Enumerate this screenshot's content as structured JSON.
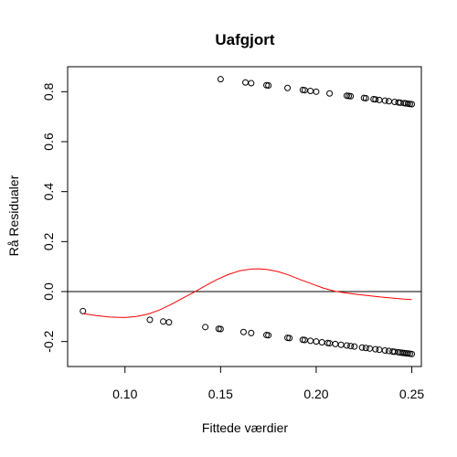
{
  "chart_data": {
    "type": "scatter",
    "title": "Uafgjort",
    "xlabel": "Fittede værdier",
    "ylabel": "Rå Residualer",
    "xlim": [
      0.07,
      0.255
    ],
    "ylim": [
      -0.3,
      0.9
    ],
    "xticks": [
      0.1,
      0.15,
      0.2,
      0.25
    ],
    "xtick_labels": [
      "0.10",
      "0.15",
      "0.20",
      "0.25"
    ],
    "yticks": [
      -0.2,
      0.0,
      0.2,
      0.4,
      0.6,
      0.8
    ],
    "ytick_labels": [
      "-0.2",
      "0.0",
      "0.2",
      "0.4",
      "0.6",
      "0.8"
    ],
    "hline": 0.0,
    "grid": false,
    "series": [
      {
        "type": "scatter",
        "color": "#000000",
        "x": [
          0.15,
          0.163,
          0.166,
          0.174,
          0.175,
          0.185,
          0.193,
          0.194,
          0.197,
          0.2,
          0.207,
          0.216,
          0.217,
          0.218,
          0.225,
          0.226,
          0.23,
          0.231,
          0.233,
          0.236,
          0.238,
          0.241,
          0.243,
          0.244,
          0.246,
          0.247,
          0.248,
          0.249,
          0.25,
          0.078,
          0.113,
          0.12,
          0.123,
          0.142,
          0.149,
          0.15,
          0.162,
          0.166,
          0.174,
          0.175,
          0.185,
          0.186,
          0.193,
          0.194,
          0.197,
          0.2,
          0.203,
          0.206,
          0.207,
          0.21,
          0.213,
          0.216,
          0.218,
          0.22,
          0.224,
          0.226,
          0.228,
          0.231,
          0.233,
          0.236,
          0.238,
          0.24,
          0.241,
          0.243,
          0.244,
          0.245,
          0.246,
          0.247,
          0.248,
          0.249,
          0.25
        ],
        "y": [
          0.85,
          0.837,
          0.834,
          0.826,
          0.825,
          0.815,
          0.807,
          0.806,
          0.803,
          0.8,
          0.793,
          0.784,
          0.783,
          0.782,
          0.775,
          0.774,
          0.77,
          0.769,
          0.767,
          0.764,
          0.762,
          0.759,
          0.757,
          0.756,
          0.754,
          0.753,
          0.752,
          0.751,
          0.75,
          -0.078,
          -0.113,
          -0.12,
          -0.123,
          -0.142,
          -0.149,
          -0.15,
          -0.162,
          -0.166,
          -0.174,
          -0.175,
          -0.185,
          -0.186,
          -0.193,
          -0.194,
          -0.197,
          -0.2,
          -0.203,
          -0.206,
          -0.207,
          -0.21,
          -0.213,
          -0.216,
          -0.218,
          -0.22,
          -0.224,
          -0.226,
          -0.228,
          -0.231,
          -0.233,
          -0.236,
          -0.238,
          -0.24,
          -0.241,
          -0.243,
          -0.244,
          -0.245,
          -0.246,
          -0.247,
          -0.248,
          -0.249,
          -0.25
        ]
      },
      {
        "type": "line",
        "color": "#ff0000",
        "x": [
          0.078,
          0.085,
          0.092,
          0.1,
          0.106,
          0.112,
          0.118,
          0.124,
          0.13,
          0.136,
          0.142,
          0.148,
          0.154,
          0.16,
          0.166,
          0.17,
          0.174,
          0.18,
          0.186,
          0.192,
          0.198,
          0.204,
          0.21,
          0.216,
          0.222,
          0.228,
          0.234,
          0.24,
          0.246,
          0.25
        ],
        "y": [
          -0.088,
          -0.096,
          -0.102,
          -0.104,
          -0.1,
          -0.09,
          -0.074,
          -0.052,
          -0.027,
          -0.003,
          0.023,
          0.048,
          0.068,
          0.083,
          0.09,
          0.091,
          0.089,
          0.08,
          0.065,
          0.047,
          0.03,
          0.013,
          0.001,
          -0.006,
          -0.012,
          -0.017,
          -0.022,
          -0.026,
          -0.03,
          -0.032
        ]
      }
    ]
  }
}
